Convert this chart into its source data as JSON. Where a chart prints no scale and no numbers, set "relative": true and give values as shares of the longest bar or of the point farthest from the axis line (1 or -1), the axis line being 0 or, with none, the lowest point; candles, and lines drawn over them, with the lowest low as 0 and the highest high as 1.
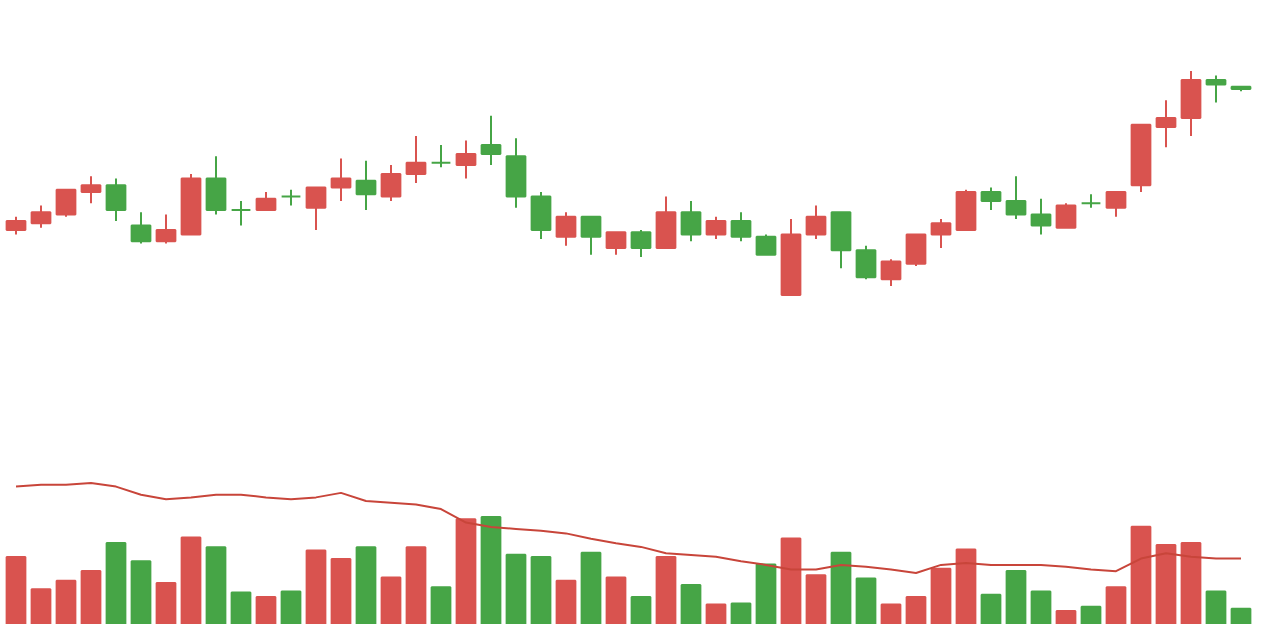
{
  "chart_data": [
    {
      "type": "candlestick",
      "relative": true,
      "categories": [
        null,
        null,
        null,
        null,
        null,
        null,
        null,
        null,
        null,
        null,
        null,
        null,
        null,
        null,
        null,
        null,
        null,
        null,
        null,
        null,
        null,
        null,
        null,
        null,
        null,
        null,
        null,
        null,
        null,
        null,
        null,
        null,
        null,
        null,
        null,
        null,
        null,
        null,
        null,
        null,
        null,
        null,
        null,
        null,
        null,
        null,
        null,
        null,
        null,
        null
      ],
      "ohlc": [
        [
          0.29,
          0.35,
          0.27,
          0.33
        ],
        [
          0.32,
          0.4,
          0.3,
          0.37
        ],
        [
          0.36,
          0.47,
          0.35,
          0.47
        ],
        [
          0.46,
          0.53,
          0.41,
          0.49
        ],
        [
          0.49,
          0.52,
          0.33,
          0.38
        ],
        [
          0.31,
          0.37,
          0.23,
          0.24
        ],
        [
          0.24,
          0.36,
          0.23,
          0.29
        ],
        [
          0.27,
          0.54,
          0.27,
          0.52
        ],
        [
          0.52,
          0.62,
          0.36,
          0.38
        ],
        [
          0.38,
          0.42,
          0.31,
          0.38
        ],
        [
          0.38,
          0.46,
          0.38,
          0.43
        ],
        [
          0.44,
          0.47,
          0.4,
          0.44
        ],
        [
          0.39,
          0.48,
          0.29,
          0.48
        ],
        [
          0.48,
          0.61,
          0.42,
          0.52
        ],
        [
          0.51,
          0.6,
          0.38,
          0.45
        ],
        [
          0.44,
          0.58,
          0.42,
          0.54
        ],
        [
          0.54,
          0.71,
          0.5,
          0.59
        ],
        [
          0.59,
          0.67,
          0.57,
          0.59
        ],
        [
          0.58,
          0.69,
          0.52,
          0.63
        ],
        [
          0.67,
          0.8,
          0.58,
          0.63
        ],
        [
          0.62,
          0.7,
          0.39,
          0.44
        ],
        [
          0.44,
          0.46,
          0.25,
          0.29
        ],
        [
          0.26,
          0.37,
          0.22,
          0.35
        ],
        [
          0.35,
          0.35,
          0.18,
          0.26
        ],
        [
          0.21,
          0.28,
          0.18,
          0.28
        ],
        [
          0.28,
          0.29,
          0.17,
          0.21
        ],
        [
          0.21,
          0.44,
          0.21,
          0.37
        ],
        [
          0.37,
          0.42,
          0.24,
          0.27
        ],
        [
          0.27,
          0.35,
          0.25,
          0.33
        ],
        [
          0.33,
          0.37,
          0.24,
          0.26
        ],
        [
          0.26,
          0.27,
          0.18,
          0.18
        ],
        [
          0,
          0.34,
          0,
          0.27
        ],
        [
          0.27,
          0.4,
          0.25,
          0.35
        ],
        [
          0.37,
          0.37,
          0.12,
          0.2
        ],
        [
          0.2,
          0.22,
          0.07,
          0.08
        ],
        [
          0.07,
          0.16,
          0.04,
          0.15
        ],
        [
          0.14,
          0.27,
          0.13,
          0.27
        ],
        [
          0.27,
          0.34,
          0.21,
          0.32
        ],
        [
          0.29,
          0.47,
          0.29,
          0.46
        ],
        [
          0.46,
          0.48,
          0.38,
          0.42
        ],
        [
          0.42,
          0.53,
          0.34,
          0.36
        ],
        [
          0.36,
          0.43,
          0.27,
          0.31
        ],
        [
          0.3,
          0.41,
          0.3,
          0.4
        ],
        [
          0.41,
          0.45,
          0.39,
          0.41
        ],
        [
          0.39,
          0.46,
          0.35,
          0.46
        ],
        [
          0.49,
          0.76,
          0.46,
          0.76
        ],
        [
          0.75,
          0.87,
          0.66,
          0.79
        ],
        [
          0.79,
          1,
          0.71,
          0.96
        ],
        [
          0.96,
          0.98,
          0.86,
          0.94
        ],
        [
          0.93,
          0.93,
          0.91,
          0.92
        ]
      ],
      "colors": [
        "#d9534f",
        "#d9534f",
        "#d9534f",
        "#d9534f",
        "#46a546",
        "#46a546",
        "#d9534f",
        "#d9534f",
        "#46a546",
        "#46a546",
        "#d9534f",
        "#46a546",
        "#d9534f",
        "#d9534f",
        "#46a546",
        "#d9534f",
        "#d9534f",
        "#46a546",
        "#d9534f",
        "#46a546",
        "#46a546",
        "#46a546",
        "#d9534f",
        "#46a546",
        "#d9534f",
        "#46a546",
        "#d9534f",
        "#46a546",
        "#d9534f",
        "#46a546",
        "#46a546",
        "#d9534f",
        "#d9534f",
        "#46a546",
        "#46a546",
        "#d9534f",
        "#d9534f",
        "#d9534f",
        "#d9534f",
        "#46a546",
        "#46a546",
        "#46a546",
        "#d9534f",
        "#46a546",
        "#d9534f",
        "#d9534f",
        "#d9534f",
        "#d9534f",
        "#46a546",
        "#46a546"
      ]
    },
    {
      "type": "bar",
      "relative": true,
      "categories": [
        null,
        null,
        null,
        null,
        null,
        null,
        null,
        null,
        null,
        null,
        null,
        null,
        null,
        null,
        null,
        null,
        null,
        null,
        null,
        null,
        null,
        null,
        null,
        null,
        null,
        null,
        null,
        null,
        null,
        null,
        null,
        null,
        null,
        null,
        null,
        null,
        null,
        null,
        null,
        null,
        null,
        null,
        null,
        null,
        null,
        null,
        null,
        null,
        null,
        null
      ],
      "colors": [
        "#d9534f",
        "#d9534f",
        "#d9534f",
        "#d9534f",
        "#46a546",
        "#46a546",
        "#d9534f",
        "#d9534f",
        "#46a546",
        "#46a546",
        "#d9534f",
        "#46a546",
        "#d9534f",
        "#d9534f",
        "#46a546",
        "#d9534f",
        "#d9534f",
        "#46a546",
        "#d9534f",
        "#46a546",
        "#46a546",
        "#46a546",
        "#d9534f",
        "#46a546",
        "#d9534f",
        "#46a546",
        "#d9534f",
        "#46a546",
        "#d9534f",
        "#46a546",
        "#46a546",
        "#d9534f",
        "#d9534f",
        "#46a546",
        "#46a546",
        "#d9534f",
        "#d9534f",
        "#d9534f",
        "#d9534f",
        "#46a546",
        "#46a546",
        "#46a546",
        "#d9534f",
        "#46a546",
        "#d9534f",
        "#d9534f",
        "#d9534f",
        "#d9534f",
        "#46a546",
        "#46a546"
      ],
      "values": [
        0.63,
        0.33,
        0.41,
        0.5,
        0.76,
        0.59,
        0.39,
        0.81,
        0.72,
        0.3,
        0.26,
        0.31,
        0.69,
        0.61,
        0.72,
        0.44,
        0.72,
        0.35,
        0.98,
        1,
        0.65,
        0.63,
        0.41,
        0.67,
        0.44,
        0.26,
        0.63,
        0.37,
        0.19,
        0.2,
        0.56,
        0.8,
        0.46,
        0.67,
        0.43,
        0.19,
        0.26,
        0.52,
        0.7,
        0.28,
        0.5,
        0.31,
        0.13,
        0.17,
        0.35,
        0.91,
        0.74,
        0.76,
        0.31,
        0.15
      ]
    },
    {
      "type": "line",
      "relative": true,
      "categories": [
        null,
        null,
        null,
        null,
        null,
        null,
        null,
        null,
        null,
        null,
        null,
        null,
        null,
        null,
        null,
        null,
        null,
        null,
        null,
        null,
        null,
        null,
        null,
        null,
        null,
        null,
        null,
        null,
        null,
        null,
        null,
        null,
        null,
        null,
        null,
        null,
        null,
        null,
        null,
        null,
        null,
        null,
        null,
        null,
        null,
        null,
        null,
        null,
        null,
        null
      ],
      "series": [
        {
          "color": "#c8453a",
          "values": [
            0.96,
            0.98,
            0.98,
            1,
            0.96,
            0.87,
            0.82,
            0.84,
            0.87,
            0.87,
            0.84,
            0.82,
            0.84,
            0.89,
            0.8,
            0.78,
            0.76,
            0.71,
            0.56,
            0.51,
            0.49,
            0.47,
            0.44,
            0.38,
            0.33,
            0.29,
            0.22,
            0.2,
            0.18,
            0.13,
            0.09,
            0.04,
            0.04,
            0.09,
            0.07,
            0.04,
            0,
            0.09,
            0.11,
            0.09,
            0.09,
            0.09,
            0.07,
            0.04,
            0.02,
            0.16,
            0.22,
            0.18,
            0.16,
            0.16
          ]
        }
      ]
    }
  ]
}
